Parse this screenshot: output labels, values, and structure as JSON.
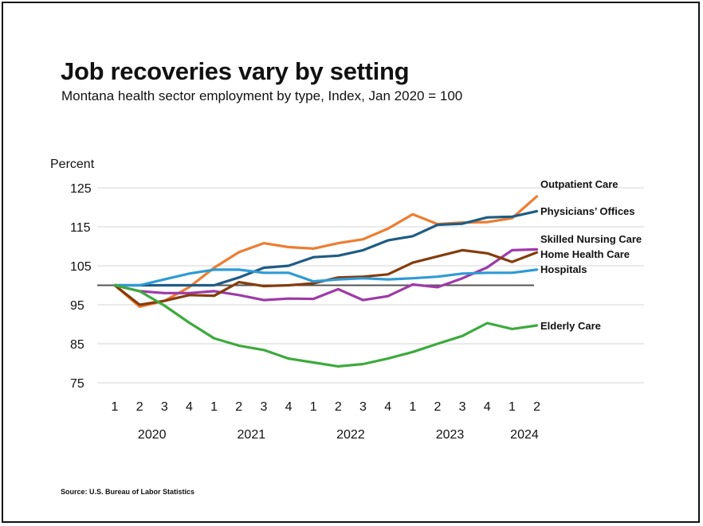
{
  "chart_data": {
    "type": "line",
    "title": "Job recoveries vary by setting",
    "subtitle": "Montana health sector employment by type, Index, Jan 2020 = 100",
    "ylabel": "Percent",
    "xlabel": "",
    "ylim": [
      75,
      125
    ],
    "yticks": [
      125,
      115,
      105,
      95,
      85,
      75
    ],
    "grid": true,
    "baseline": 100,
    "legend_placement": "right (direct labels)",
    "source": "Source: U.S. Bureau of Labor Statistics",
    "x_quarters": [
      "1",
      "2",
      "3",
      "4",
      "1",
      "2",
      "3",
      "4",
      "1",
      "2",
      "3",
      "4",
      "1",
      "2",
      "3",
      "4",
      "1",
      "2"
    ],
    "x_years": [
      {
        "label": "2020",
        "start": 0,
        "end": 3
      },
      {
        "label": "2021",
        "start": 4,
        "end": 7
      },
      {
        "label": "2022",
        "start": 8,
        "end": 11
      },
      {
        "label": "2023",
        "start": 12,
        "end": 15
      },
      {
        "label": "2024",
        "start": 16,
        "end": 17
      }
    ],
    "series": [
      {
        "name": "Outpatient Care",
        "color": "#ed7d31",
        "values": [
          100,
          94.5,
          96,
          99.5,
          104.5,
          108.5,
          110.8,
          109.8,
          109.4,
          110.8,
          111.8,
          114.5,
          118.2,
          115.7,
          116.1,
          116.2,
          117.2,
          122.8
        ]
      },
      {
        "name": "Physicians’ Offices",
        "color": "#1f5c84",
        "values": [
          100,
          100,
          100,
          100,
          100,
          102,
          104.5,
          105,
          107.2,
          107.6,
          109,
          111.5,
          112.6,
          115.5,
          115.8,
          117.4,
          117.6,
          119
        ]
      },
      {
        "name": "Skilled Nursing Care",
        "color": "#9e3aa8",
        "values": [
          100,
          98.5,
          98,
          98,
          98.5,
          97.5,
          96.2,
          96.6,
          96.5,
          99,
          96.2,
          97.2,
          100.2,
          99.5,
          101.8,
          104.6,
          109,
          109.2
        ]
      },
      {
        "name": "Home Health Care",
        "color": "#843c0c",
        "values": [
          100,
          95,
          96,
          97.5,
          97.3,
          100.8,
          99.8,
          100,
          100.5,
          102,
          102.2,
          102.8,
          105.8,
          107.4,
          109,
          108.2,
          106,
          108.4
        ]
      },
      {
        "name": "Hospitals",
        "color": "#2e9bd6",
        "values": [
          100,
          100,
          101.5,
          103,
          104,
          104,
          103.2,
          103.2,
          101,
          101.5,
          101.8,
          101.5,
          101.8,
          102.2,
          103,
          103.2,
          103.2,
          104
        ]
      },
      {
        "name": "Elderly Care",
        "color": "#3daa3d",
        "values": [
          100,
          98.5,
          94.8,
          90.4,
          86.4,
          84.5,
          83.4,
          81.2,
          80.2,
          79.2,
          79.8,
          81.2,
          82.9,
          85,
          87,
          90.3,
          88.8,
          89.7
        ]
      }
    ]
  }
}
